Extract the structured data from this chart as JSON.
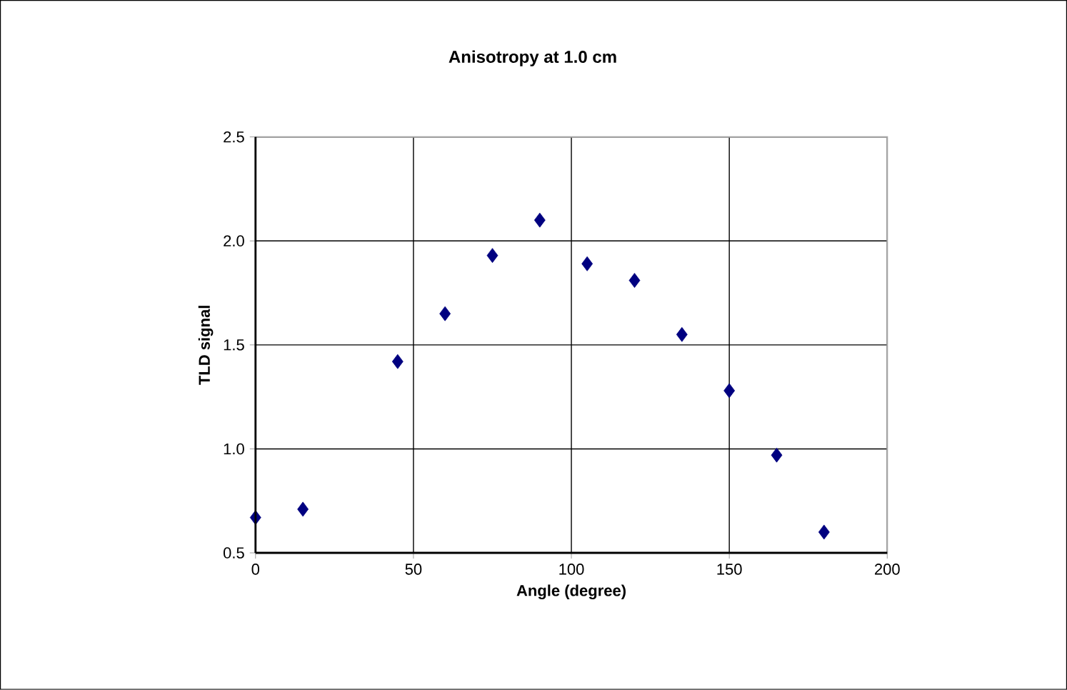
{
  "chart_data": {
    "type": "scatter",
    "title": "Anisotropy at 1.0 cm",
    "xlabel": "Angle (degree)",
    "ylabel": "TLD signal",
    "x": [
      0,
      15,
      45,
      60,
      75,
      90,
      105,
      120,
      135,
      150,
      165,
      180
    ],
    "series": [
      {
        "color": "#000080",
        "values": [
          0.67,
          0.71,
          1.42,
          1.65,
          1.93,
          2.1,
          1.89,
          1.81,
          1.55,
          1.28,
          0.97,
          0.6
        ]
      }
    ],
    "xlim": [
      0,
      200
    ],
    "ylim": [
      0.5,
      2.5
    ],
    "xticks": [
      0,
      50,
      100,
      150,
      200
    ],
    "yticks": [
      {
        "value": 0.5,
        "label": "0.5"
      },
      {
        "value": 1.0,
        "label": "1.0"
      },
      {
        "value": 1.5,
        "label": "1.5"
      },
      {
        "value": 2.0,
        "label": "2.0"
      },
      {
        "value": 2.5,
        "label": "2.5"
      }
    ],
    "grid": true,
    "marker": "diamond"
  }
}
